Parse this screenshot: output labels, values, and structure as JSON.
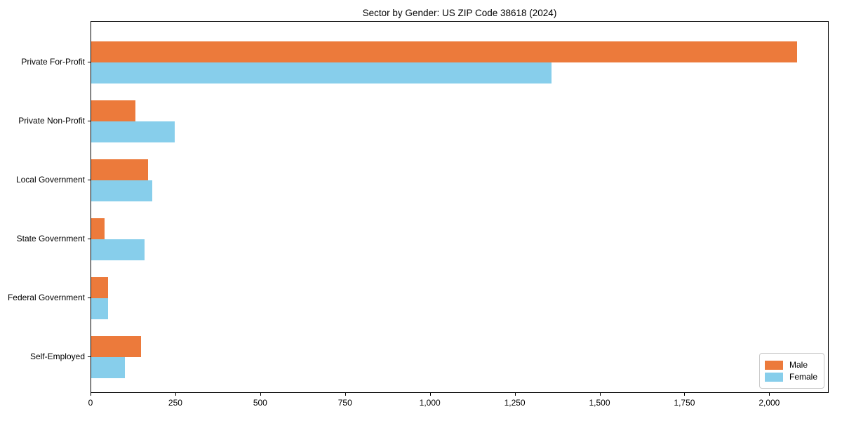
{
  "chart_data": {
    "type": "bar",
    "orientation": "horizontal",
    "title": "Sector by Gender: US ZIP Code 38618 (2024)",
    "categories": [
      "Private For-Profit",
      "Private Non-Profit",
      "Local Government",
      "State Government",
      "Federal Government",
      "Self-Employed"
    ],
    "series": [
      {
        "name": "Male",
        "color": "#EC7A3B",
        "values": [
          2080,
          130,
          168,
          39,
          50,
          146
        ]
      },
      {
        "name": "Female",
        "color": "#87CEEB",
        "values": [
          1356,
          247,
          179,
          158,
          50,
          99
        ]
      }
    ],
    "xlabel": "",
    "ylabel": "",
    "xlim": [
      0,
      2175
    ],
    "xticks": [
      0,
      250,
      500,
      750,
      1000,
      1250,
      1500,
      1750,
      2000
    ],
    "xtick_labels": [
      "0",
      "250",
      "500",
      "750",
      "1,000",
      "1,250",
      "1,500",
      "1,750",
      "2,000"
    ],
    "legend_position": "lower right",
    "grid": false,
    "axis_color": "#000000",
    "background_color": "#ffffff"
  }
}
